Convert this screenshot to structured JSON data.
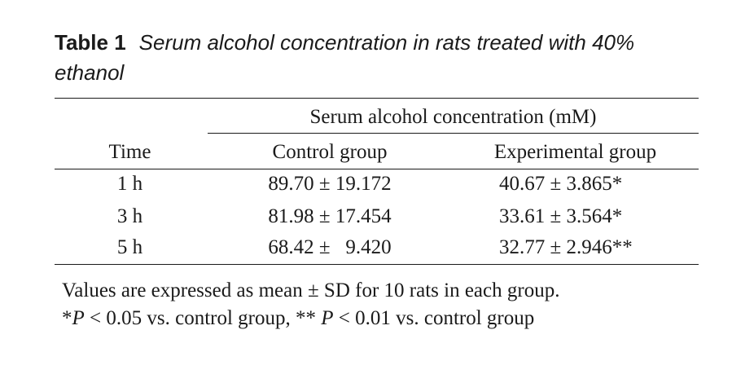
{
  "table": {
    "label": "Table 1",
    "title": "Serum alcohol concentration in rats treated with 40% ethanol",
    "spanner": "Serum alcohol concentration (mM)",
    "columns": [
      "Time",
      "Control group",
      "Experimental group"
    ],
    "rows": [
      {
        "time": "1 h",
        "control": "89.70 ± 19.172",
        "experimental": "40.67 ± 3.865*"
      },
      {
        "time": "3 h",
        "control": "81.98 ± 17.454",
        "experimental": "33.61 ± 3.564*"
      },
      {
        "time": "5 h",
        "control": "68.42 ±   9.420",
        "experimental": "32.77 ± 2.946**"
      }
    ],
    "notes": {
      "line1": "Values are expressed as mean ± SD for 10 rats in each group.",
      "line2_a": "*",
      "line2_b": "P",
      "line2_c": " < 0.05 vs. control group, ** ",
      "line2_d": "P",
      "line2_e": " < 0.01 vs. control group"
    }
  }
}
